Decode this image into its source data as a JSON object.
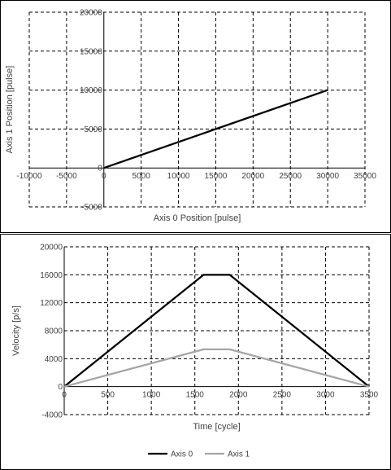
{
  "chart_data": [
    {
      "type": "scatter",
      "title": "",
      "xlabel": "Axis 0 Position [pulse]",
      "ylabel": "Axis 1 Position [pulse]",
      "xlim": [
        -10000,
        35000
      ],
      "ylim": [
        -5000,
        20000
      ],
      "x_ticks": [
        -10000,
        -5000,
        0,
        5000,
        10000,
        15000,
        20000,
        25000,
        30000,
        35000
      ],
      "y_ticks": [
        -5000,
        0,
        5000,
        10000,
        15000,
        20000
      ],
      "grid": true,
      "series": [
        {
          "x": [
            0,
            30000
          ],
          "y": [
            0,
            10000
          ],
          "color": "#000000"
        }
      ]
    },
    {
      "type": "line",
      "title": "",
      "xlabel": "Time [cycle]",
      "ylabel": "Velocity [p/s]",
      "xlim": [
        0,
        3500
      ],
      "ylim": [
        -4000,
        20000
      ],
      "x_ticks": [
        0,
        500,
        1000,
        1500,
        2000,
        2500,
        3000,
        3500
      ],
      "y_ticks": [
        -4000,
        0,
        4000,
        8000,
        12000,
        16000,
        20000
      ],
      "grid": true,
      "legend_position": "bottom",
      "series": [
        {
          "name": "Axis 0",
          "color": "#000000",
          "x": [
            0,
            1600,
            1900,
            3500
          ],
          "y": [
            0,
            16000,
            16000,
            0
          ]
        },
        {
          "name": "Axis 1",
          "color": "#a6a6a6",
          "x": [
            0,
            1600,
            1900,
            3500
          ],
          "y": [
            0,
            5333,
            5333,
            0
          ]
        }
      ]
    }
  ]
}
